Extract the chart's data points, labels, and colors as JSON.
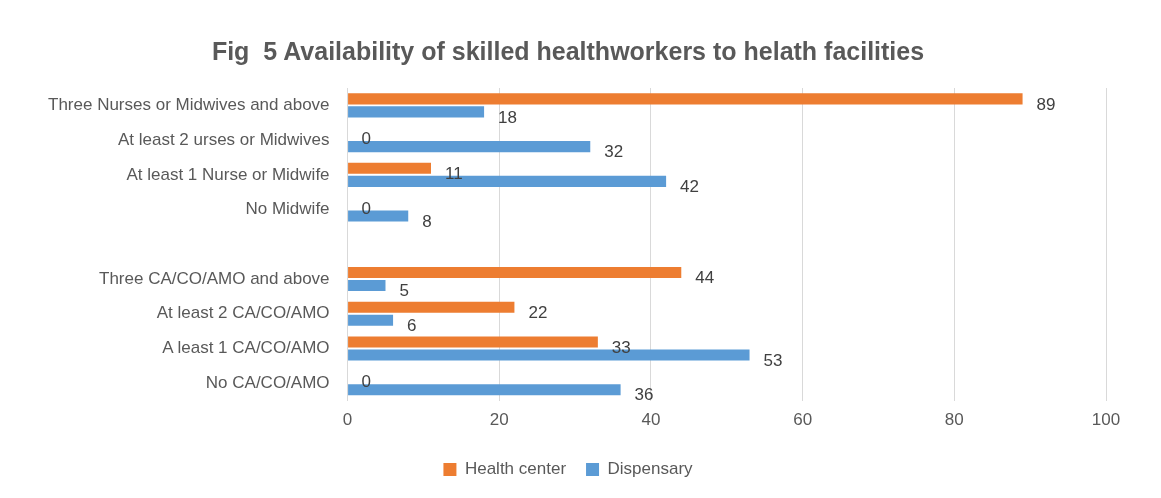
{
  "chart_data": {
    "type": "bar",
    "orientation": "horizontal",
    "title": "Fig  5 Availability of skilled healthworkers to helath facilities",
    "categories": [
      "Three Nurses or Midwives and above",
      "At least 2 urses or Midwives",
      "At least 1 Nurse or Midwife",
      "No Midwife",
      null,
      "Three CA/CO/AMO and above",
      "At least 2 CA/CO/AMO",
      "A least 1 CA/CO/AMO",
      "No CA/CO/AMO"
    ],
    "series": [
      {
        "name": "Health center",
        "color": "#ed7d31",
        "values": [
          89,
          0,
          11,
          0,
          null,
          44,
          22,
          33,
          0
        ]
      },
      {
        "name": "Dispensary",
        "color": "#5b9bd5",
        "values": [
          18,
          32,
          42,
          8,
          null,
          5,
          6,
          53,
          36
        ]
      }
    ],
    "xlim": [
      0,
      100
    ],
    "xticks": [
      0,
      20,
      40,
      60,
      80,
      100
    ],
    "grid": "x",
    "legend": "bottom",
    "data_labels": true
  }
}
